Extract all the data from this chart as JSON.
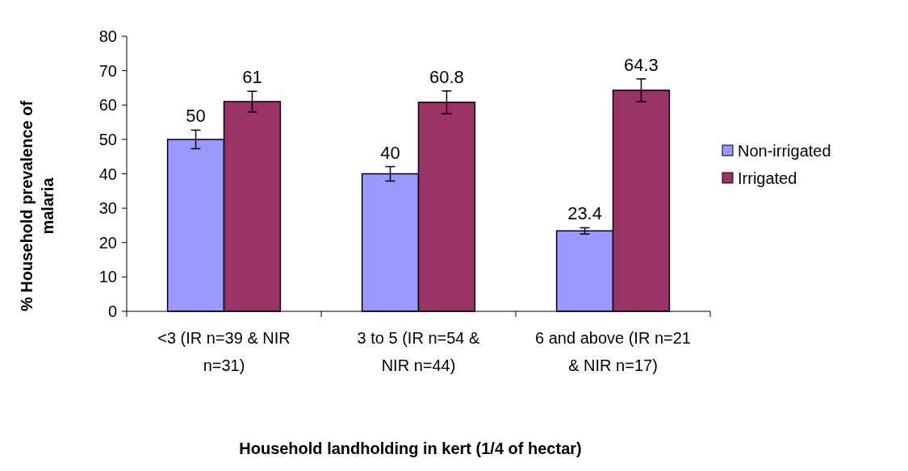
{
  "chart_data": {
    "type": "bar",
    "categories": [
      "<3 (IR n=39 & NIR n=31)",
      "3 to 5 (IR n=54 & NIR n=44)",
      "6 and above (IR n=21 & NIR n=17)"
    ],
    "series": [
      {
        "name": "Non-irrigated",
        "color": "#9999ff",
        "values": [
          50,
          40,
          23.4
        ],
        "errors": [
          2.7,
          2.1,
          0.9
        ]
      },
      {
        "name": "Irrigated",
        "color": "#993366",
        "values": [
          61,
          60.8,
          64.3
        ],
        "errors": [
          3,
          3.3,
          3.3
        ]
      }
    ],
    "ylim": [
      0,
      80
    ],
    "yticks": [
      0,
      10,
      20,
      30,
      40,
      50,
      60,
      70,
      80
    ],
    "ylabel": "% Household prevalence of malaria",
    "xlabel": "Household landholding in kert (1/4 of hectar)",
    "data_labels": true,
    "legend": "right",
    "grid": false
  }
}
